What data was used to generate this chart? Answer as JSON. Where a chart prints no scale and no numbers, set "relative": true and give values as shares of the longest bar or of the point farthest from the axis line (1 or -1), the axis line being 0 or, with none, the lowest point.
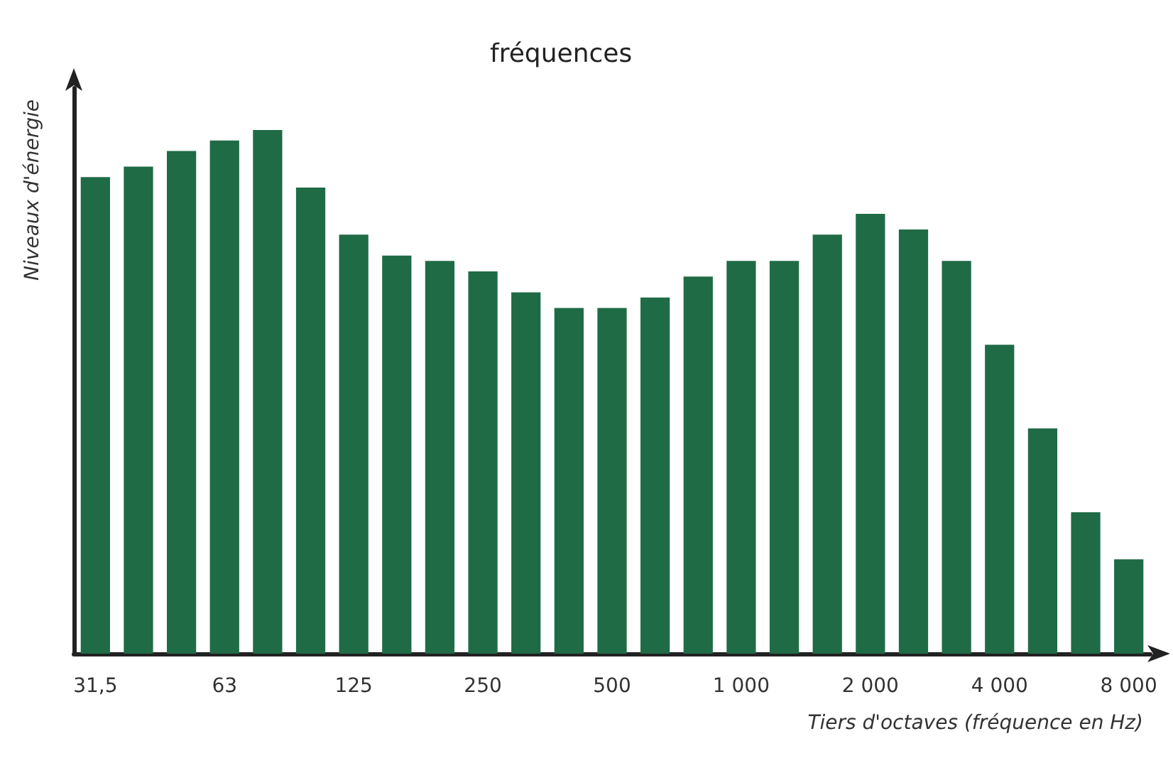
{
  "chart_data": {
    "type": "bar",
    "title": "fréquences",
    "ylabel": "Niveaux d'énergie",
    "xlabel": "Tiers d'octaves (fréquence en Hz)",
    "relative": true,
    "grid": false,
    "color": "#1f6b45",
    "categories": [
      "31,5",
      null,
      null,
      "63",
      null,
      null,
      "125",
      null,
      null,
      "250",
      null,
      null,
      "500",
      null,
      null,
      "1 000",
      null,
      null,
      "2 000",
      null,
      null,
      "4 000",
      null,
      null,
      "8 000"
    ],
    "values": [
      0.91,
      0.93,
      0.96,
      0.98,
      1,
      0.89,
      0.8,
      0.76,
      0.75,
      0.73,
      0.69,
      0.66,
      0.66,
      0.68,
      0.72,
      0.75,
      0.75,
      0.8,
      0.84,
      0.81,
      0.75,
      0.59,
      0.43,
      0.27,
      0.18
    ]
  }
}
